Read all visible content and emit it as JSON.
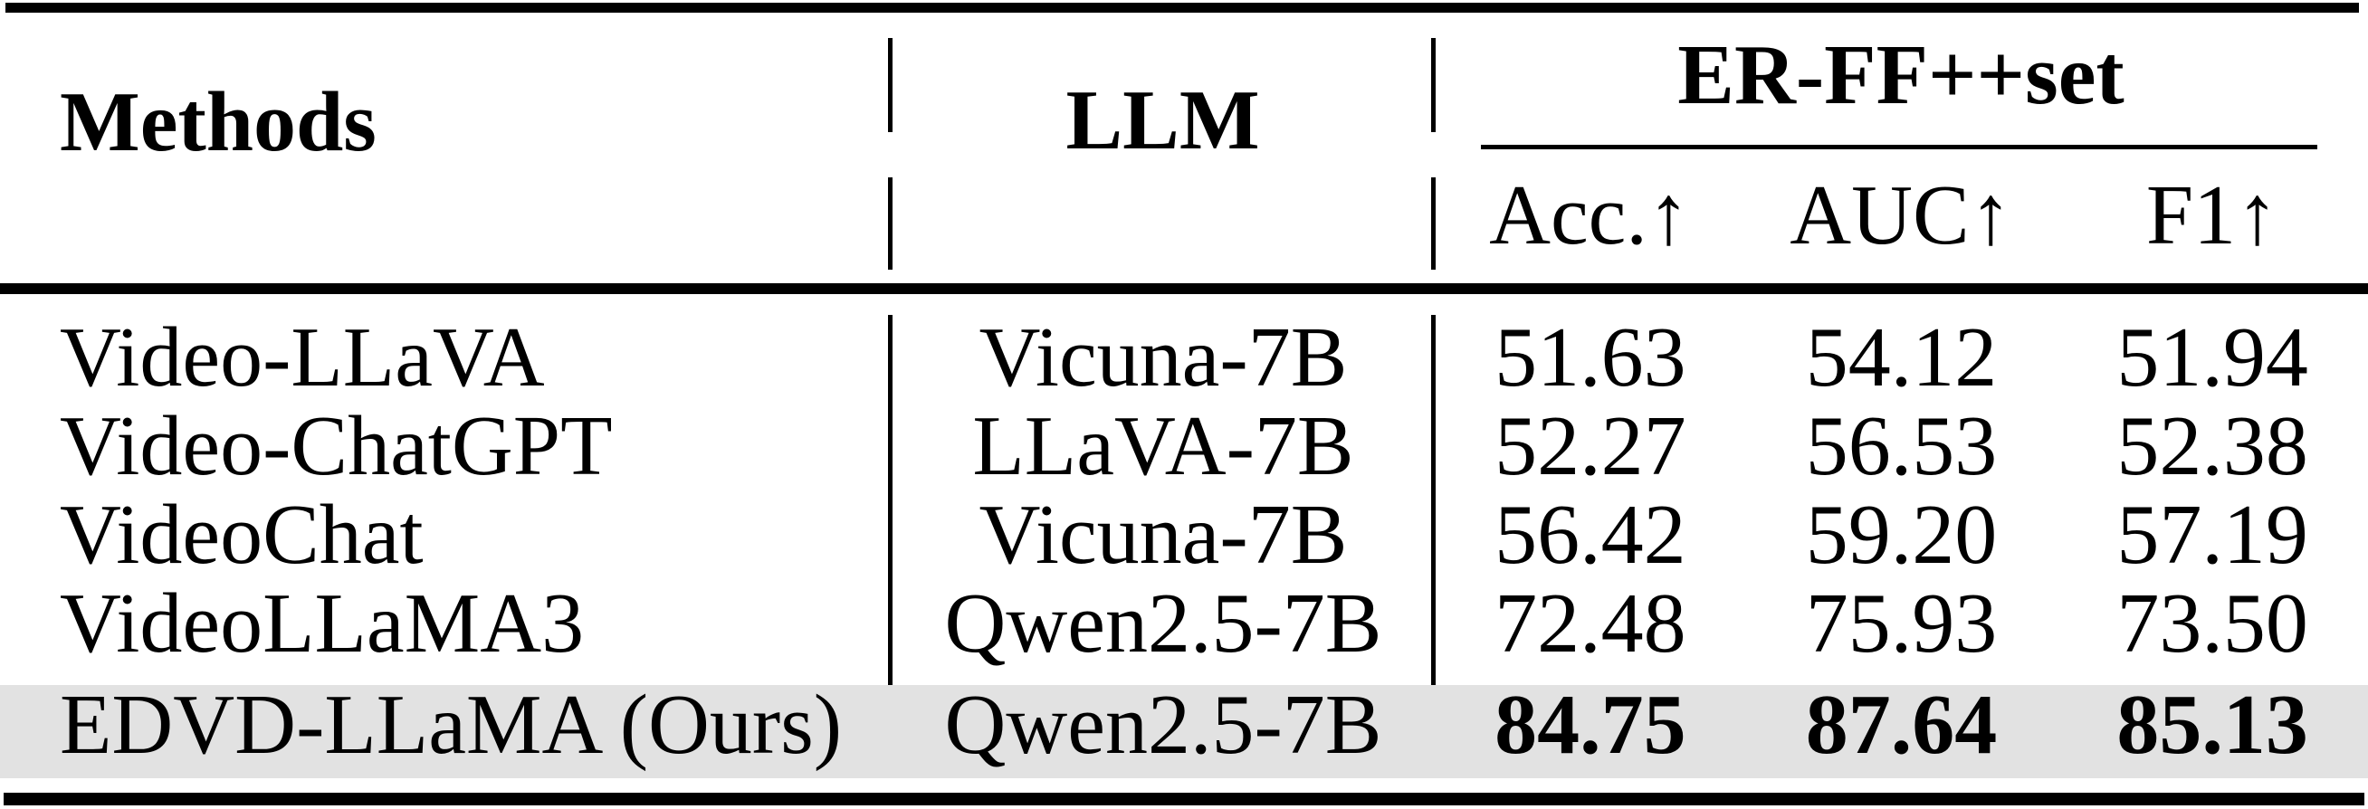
{
  "page": {
    "background_color": "#ffffff",
    "text_color": "#000000",
    "rule_color": "#000000",
    "highlight_color": "#e2e2e2"
  },
  "table": {
    "header": {
      "methods_label": "Methods",
      "llm_label": "LLM",
      "group_label": "ER-FF++set",
      "metrics": [
        "Acc.↑",
        "AUC↑",
        "F1↑"
      ]
    },
    "rows": [
      {
        "method": "Video-LLaVA",
        "llm": "Vicuna-7B",
        "values": [
          "51.63",
          "54.12",
          "51.94"
        ],
        "highlight": false
      },
      {
        "method": "Video-ChatGPT",
        "llm": "LLaVA-7B",
        "values": [
          "52.27",
          "56.53",
          "52.38"
        ],
        "highlight": false
      },
      {
        "method": "VideoChat",
        "llm": "Vicuna-7B",
        "values": [
          "56.42",
          "59.20",
          "57.19"
        ],
        "highlight": false
      },
      {
        "method": "VideoLLaMA3",
        "llm": "Qwen2.5-7B",
        "values": [
          "72.48",
          "75.93",
          "73.50"
        ],
        "highlight": false
      },
      {
        "method": "EDVD-LLaMA (Ours)",
        "llm": "Qwen2.5-7B",
        "values": [
          "84.75",
          "87.64",
          "85.13"
        ],
        "highlight": true,
        "values_bold": true
      }
    ]
  }
}
